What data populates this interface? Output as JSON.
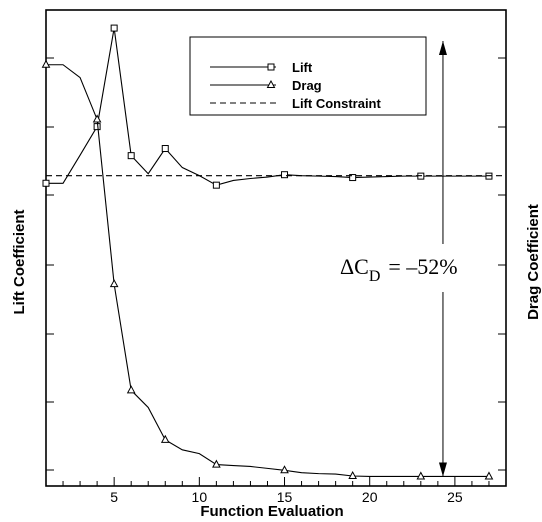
{
  "chart_data": {
    "type": "line",
    "xlabel": "Function Evaluation",
    "ylabel_left": "Lift Coefficient",
    "ylabel_right": "Drag Coefficient",
    "xlim": [
      1,
      28
    ],
    "xticks": [
      5,
      10,
      15,
      20,
      25
    ],
    "ylim": [
      0,
      1
    ],
    "y_tick_labels_shown": false,
    "grid": false,
    "legend_position": "top-center",
    "series": [
      {
        "name": "Lift",
        "marker": "square",
        "x": [
          1,
          2,
          3,
          4,
          5,
          6,
          7,
          8,
          9,
          10,
          11,
          12,
          13,
          14,
          15,
          16,
          17,
          18,
          19,
          20,
          21,
          22,
          23,
          24,
          25,
          26,
          27
        ],
        "y": [
          0.636,
          0.636,
          0.695,
          0.755,
          0.962,
          0.694,
          0.656,
          0.709,
          0.669,
          0.652,
          0.632,
          0.642,
          0.646,
          0.649,
          0.654,
          0.652,
          0.651,
          0.65,
          0.648,
          0.649,
          0.65,
          0.651,
          0.651,
          0.651,
          0.651,
          0.651,
          0.651
        ]
      },
      {
        "name": "Drag",
        "marker": "triangle",
        "x": [
          1,
          2,
          3,
          4,
          5,
          6,
          7,
          8,
          9,
          10,
          11,
          12,
          13,
          14,
          15,
          16,
          17,
          18,
          19,
          20,
          21,
          22,
          23,
          24,
          25,
          26,
          27
        ],
        "y": [
          0.885,
          0.885,
          0.858,
          0.77,
          0.424,
          0.201,
          0.165,
          0.097,
          0.076,
          0.068,
          0.045,
          0.043,
          0.041,
          0.037,
          0.033,
          0.028,
          0.026,
          0.025,
          0.021,
          0.02,
          0.02,
          0.02,
          0.02,
          0.02,
          0.02,
          0.02,
          0.02
        ]
      },
      {
        "name": "Lift Constraint",
        "style": "dashed",
        "x": [
          1,
          28
        ],
        "y": [
          0.652,
          0.652
        ]
      }
    ],
    "marker_x": [
      1,
      4,
      5,
      6,
      8,
      11,
      15,
      19,
      23,
      27
    ],
    "annotation": {
      "text_delta": "ΔC",
      "text_sub": "D",
      "text_value": "= –52%",
      "arrow_x": 24.3,
      "arrow_y_top": 0.935,
      "arrow_y_bottom": 0.02
    }
  }
}
